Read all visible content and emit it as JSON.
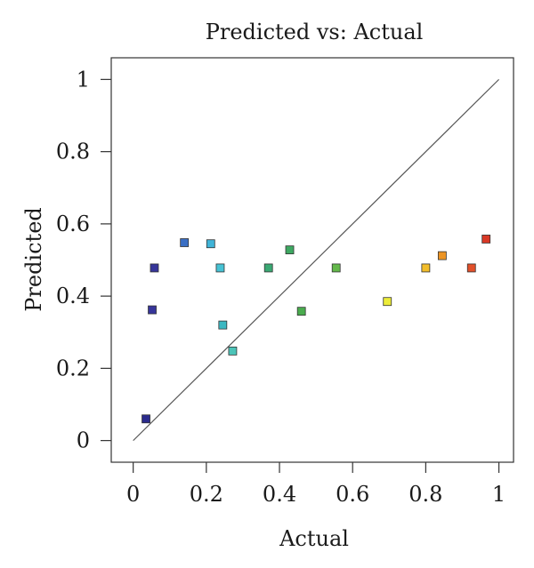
{
  "chart_data": {
    "type": "scatter",
    "title": "Predicted vs: Actual",
    "xlabel": "Actual",
    "ylabel": "Predicted",
    "xlim": [
      -0.06,
      1.04
    ],
    "ylim": [
      -0.06,
      1.06
    ],
    "x_ticks": [
      "0",
      "0.2",
      "0.4",
      "0.6",
      "0.8",
      "1"
    ],
    "y_ticks": [
      "0",
      "0.2",
      "0.4",
      "0.6",
      "0.8",
      "1"
    ],
    "x_tick_values": [
      0,
      0.2,
      0.4,
      0.6,
      0.8,
      1
    ],
    "y_tick_values": [
      0,
      0.2,
      0.4,
      0.6,
      0.8,
      1
    ],
    "reference_line": {
      "from": [
        0,
        0
      ],
      "to": [
        1,
        1
      ],
      "color": "#555555"
    },
    "points": [
      {
        "x": 0.035,
        "y": 0.06,
        "color": "#2b2b8c"
      },
      {
        "x": 0.052,
        "y": 0.362,
        "color": "#36359a"
      },
      {
        "x": 0.058,
        "y": 0.478,
        "color": "#36359a"
      },
      {
        "x": 0.14,
        "y": 0.548,
        "color": "#3a6fc4"
      },
      {
        "x": 0.212,
        "y": 0.545,
        "color": "#40b4d8"
      },
      {
        "x": 0.238,
        "y": 0.478,
        "color": "#46c2d4"
      },
      {
        "x": 0.245,
        "y": 0.32,
        "color": "#3cb8c2"
      },
      {
        "x": 0.272,
        "y": 0.248,
        "color": "#4cc4b8"
      },
      {
        "x": 0.37,
        "y": 0.478,
        "color": "#3aa873"
      },
      {
        "x": 0.428,
        "y": 0.528,
        "color": "#3ea862"
      },
      {
        "x": 0.46,
        "y": 0.358,
        "color": "#4aac4e"
      },
      {
        "x": 0.555,
        "y": 0.478,
        "color": "#63b84a"
      },
      {
        "x": 0.695,
        "y": 0.385,
        "color": "#ecec3a"
      },
      {
        "x": 0.8,
        "y": 0.478,
        "color": "#f2bd2a"
      },
      {
        "x": 0.845,
        "y": 0.512,
        "color": "#ec9424"
      },
      {
        "x": 0.925,
        "y": 0.478,
        "color": "#e2502a"
      },
      {
        "x": 0.965,
        "y": 0.558,
        "color": "#d83826"
      }
    ]
  }
}
